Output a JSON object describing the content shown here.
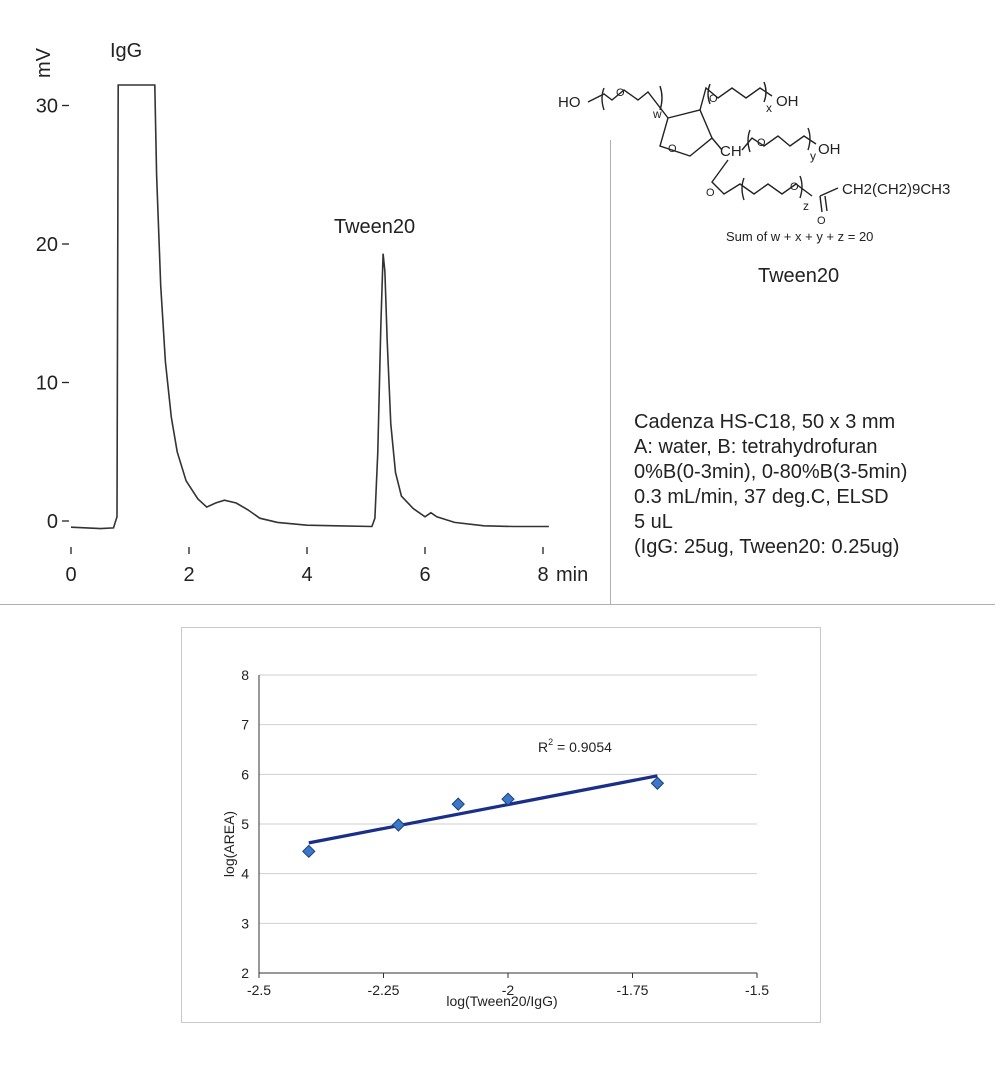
{
  "chromatogram": {
    "y_unit": "mV",
    "x_unit": "min",
    "x_ticks": [
      "0",
      "2",
      "4",
      "6",
      "8"
    ],
    "y_ticks": [
      "0",
      "10",
      "20",
      "30"
    ],
    "peak_labels": [
      {
        "text": "IgG",
        "time": 1.1
      },
      {
        "text": "Tween20",
        "time": 5.3
      }
    ],
    "line_color": "#333333"
  },
  "structure": {
    "name": "Tween20",
    "sum_text": "Sum of w + x + y + z = 20",
    "labels": {
      "ho": "HO",
      "oh_x": "OH",
      "oh_y": "OH",
      "ch": "CH",
      "tail": "CH2(CH2)9CH3",
      "w": "w",
      "x": "x",
      "y": "y",
      "z": "z"
    }
  },
  "conditions": [
    "Cadenza HS-C18, 50 x 3 mm",
    "A: water, B: tetrahydrofuran",
    "0%B(0-3min), 0-80%B(3-5min)",
    "0.3 mL/min, 37 deg.C, ELSD",
    "5 uL",
    "(IgG: 25ug, Tween20: 0.25ug)"
  ],
  "chart_data": {
    "type": "scatter",
    "xlabel": "log(Tween20/IgG)",
    "ylabel": "log(AREA)",
    "xlim": [
      -2.5,
      -1.5
    ],
    "ylim": [
      2,
      8
    ],
    "x_ticks": [
      "-2.5",
      "-2.25",
      "-2",
      "-1.75",
      "-1.5"
    ],
    "y_ticks": [
      "2",
      "3",
      "4",
      "5",
      "6",
      "7",
      "8"
    ],
    "grid": "horizontal",
    "points": [
      {
        "x": -2.4,
        "y": 4.45
      },
      {
        "x": -2.22,
        "y": 4.98
      },
      {
        "x": -2.1,
        "y": 5.4
      },
      {
        "x": -2.0,
        "y": 5.5
      },
      {
        "x": -1.7,
        "y": 5.82
      }
    ],
    "trendline": {
      "x": [
        -2.4,
        -1.7
      ],
      "y": [
        4.62,
        5.97
      ]
    },
    "r2_label": "R",
    "r2_sup": "2",
    "r2_value": " = 0.9054",
    "marker_color": "#3a78c9",
    "trend_color": "#1a2f8a"
  }
}
